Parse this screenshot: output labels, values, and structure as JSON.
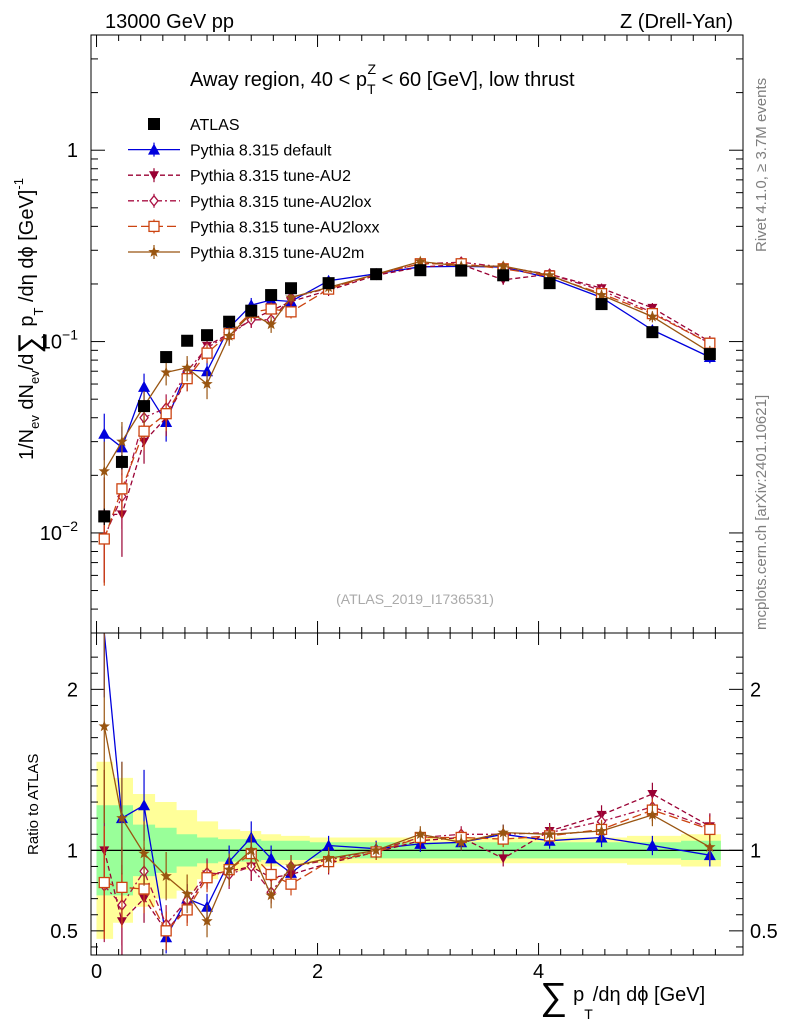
{
  "header": {
    "energy_label": "13000 GeV pp",
    "process_label": "Z (Drell-Yan)"
  },
  "side_labels": {
    "rivet": "Rivet 4.1.0, ≥ 3.7M events",
    "mcplots": "mcplots.cern.ch [arXiv:2401.10621]"
  },
  "colors": {
    "atlas": "#000000",
    "default": "#0000dd",
    "au2": "#990033",
    "au2lox": "#aa1144",
    "au2loxx": "#cc4411",
    "au2m": "#995511",
    "band_inner": "#99ff99",
    "band_outer": "#ffff99"
  },
  "chart_data": {
    "type": "scatter",
    "title": "Away region, 40 < p_T^Z < 60 [GeV], low thrust",
    "title_parts": {
      "prefix": "Away region, 40 < p",
      "sup": "Z",
      "sub": "T",
      "suffix": " < 60 [GeV], low thrust"
    },
    "watermark": "(ATLAS_2019_I1736531)",
    "xlabel": "∑ p_T/dη dϕ [GeV]",
    "xlabel_parts": {
      "sum": "∑",
      "p": "p",
      "sub": "T",
      "rest": "/dη dϕ [GeV]"
    },
    "ylabel": "1/N_ev dN_ev/d∑ p_T /dη dϕ [GeV]^-1",
    "ylabel_parts": {
      "a": "1/N",
      "ev1": "ev",
      "b": " dN",
      "ev2": "ev",
      "c": "/d",
      "sum": "∑",
      "d": " p",
      "sub": "T",
      "e": " /dη dϕ  [GeV]",
      "sup": "-1"
    },
    "ratio_ylabel": "Ratio to ATLAS",
    "xlim": [
      -0.05,
      5.85
    ],
    "ylim": [
      0.003,
      4.0
    ],
    "ratio_ylim": [
      0.35,
      2.35
    ],
    "yscale": "log",
    "x_ticks": [
      "0",
      "2",
      "4"
    ],
    "x_tick_values": [
      0,
      2,
      4
    ],
    "y_ticks": [
      "10^-2",
      "10^-1",
      "1"
    ],
    "y_tick_parts": [
      {
        "base": "10",
        "exp": "−2",
        "value": 0.01
      },
      {
        "base": "10",
        "exp": "−1",
        "value": 0.1
      },
      {
        "base": "1",
        "exp": "",
        "value": 1
      }
    ],
    "ratio_ticks": [
      "0.5",
      "1",
      "2"
    ],
    "ratio_tick_values": [
      0.5,
      1,
      2
    ],
    "x": [
      0.07,
      0.23,
      0.43,
      0.63,
      0.82,
      1.0,
      1.2,
      1.4,
      1.58,
      1.76,
      2.1,
      2.53,
      2.93,
      3.3,
      3.68,
      4.1,
      4.57,
      5.03,
      5.55
    ],
    "band_inner": [
      0.28,
      0.28,
      0.16,
      0.14,
      0.1,
      0.08,
      0.07,
      0.07,
      0.06,
      0.06,
      0.05,
      0.05,
      0.05,
      0.05,
      0.05,
      0.05,
      0.05,
      0.05,
      0.06
    ],
    "band_outer": [
      0.55,
      0.45,
      0.35,
      0.3,
      0.25,
      0.18,
      0.13,
      0.12,
      0.1,
      0.09,
      0.08,
      0.08,
      0.08,
      0.08,
      0.08,
      0.08,
      0.08,
      0.09,
      0.1
    ],
    "series": [
      {
        "name": "ATLAS",
        "key": "atlas",
        "marker": "square",
        "line": "none",
        "values": [
          0.0122,
          0.0235,
          0.046,
          0.083,
          0.101,
          0.108,
          0.127,
          0.145,
          0.175,
          0.19,
          0.202,
          0.225,
          0.236,
          0.235,
          0.222,
          0.202,
          0.157,
          0.112,
          0.086
        ],
        "errors": [
          0.0012,
          0.002,
          0.003,
          0.004,
          0.004,
          0.004,
          0.004,
          0.004,
          0.005,
          0.005,
          0.005,
          0.005,
          0.005,
          0.005,
          0.005,
          0.005,
          0.004,
          0.003,
          0.003
        ]
      },
      {
        "name": "Pythia 8.315 default",
        "key": "default",
        "marker": "triangle-up",
        "line": "solid",
        "values": [
          0.033,
          0.028,
          0.058,
          0.038,
          0.071,
          0.07,
          0.118,
          0.155,
          0.165,
          0.162,
          0.208,
          0.226,
          0.246,
          0.247,
          0.245,
          0.215,
          0.17,
          0.115,
          0.083
        ],
        "errors": [
          0.009,
          0.008,
          0.01,
          0.008,
          0.009,
          0.009,
          0.012,
          0.014,
          0.014,
          0.013,
          0.012,
          0.012,
          0.013,
          0.013,
          0.013,
          0.011,
          0.01,
          0.007,
          0.006
        ],
        "ratio": [
          2.7,
          1.2,
          1.28,
          0.46,
          0.7,
          0.65,
          0.93,
          1.08,
          0.95,
          0.86,
          1.03,
          1.01,
          1.04,
          1.05,
          1.1,
          1.06,
          1.08,
          1.03,
          0.97
        ],
        "ratio_err": [
          0.75,
          0.35,
          0.22,
          0.1,
          0.09,
          0.08,
          0.1,
          0.1,
          0.08,
          0.07,
          0.06,
          0.05,
          0.05,
          0.05,
          0.06,
          0.05,
          0.06,
          0.06,
          0.07
        ]
      },
      {
        "name": "Pythia 8.315 tune-AU2",
        "key": "au2",
        "marker": "triangle-down",
        "line": "dashed",
        "values": [
          0.0125,
          0.0125,
          0.03,
          0.04,
          0.064,
          0.095,
          0.11,
          0.13,
          0.145,
          0.162,
          0.185,
          0.222,
          0.245,
          0.253,
          0.21,
          0.225,
          0.19,
          0.15,
          0.1
        ],
        "errors": [
          0.007,
          0.005,
          0.007,
          0.008,
          0.009,
          0.01,
          0.011,
          0.012,
          0.012,
          0.012,
          0.012,
          0.012,
          0.013,
          0.013,
          0.012,
          0.012,
          0.011,
          0.009,
          0.007
        ],
        "ratio": [
          1.0,
          0.56,
          0.7,
          0.5,
          0.65,
          0.85,
          0.87,
          0.9,
          0.83,
          0.85,
          0.92,
          0.99,
          1.06,
          1.08,
          0.95,
          1.12,
          1.22,
          1.35,
          1.15
        ],
        "ratio_err": [
          0.5,
          0.3,
          0.15,
          0.12,
          0.1,
          0.09,
          0.09,
          0.09,
          0.07,
          0.07,
          0.07,
          0.05,
          0.05,
          0.05,
          0.05,
          0.05,
          0.06,
          0.07,
          0.08
        ]
      },
      {
        "name": "Pythia 8.315 tune-AU2lox",
        "key": "au2lox",
        "marker": "diamond",
        "line": "dashdot",
        "values": [
          0.0095,
          0.0155,
          0.04,
          0.045,
          0.07,
          0.093,
          0.108,
          0.13,
          0.13,
          0.17,
          0.19,
          0.225,
          0.255,
          0.26,
          0.245,
          0.225,
          0.185,
          0.142,
          0.098
        ],
        "errors": [
          0.004,
          0.005,
          0.007,
          0.008,
          0.009,
          0.01,
          0.011,
          0.012,
          0.011,
          0.012,
          0.012,
          0.012,
          0.013,
          0.013,
          0.013,
          0.012,
          0.011,
          0.009,
          0.007
        ],
        "ratio": [
          0.78,
          0.66,
          0.87,
          0.54,
          0.69,
          0.86,
          0.85,
          0.9,
          0.74,
          0.9,
          0.94,
          1.0,
          1.08,
          1.1,
          1.1,
          1.11,
          1.18,
          1.27,
          1.14
        ],
        "ratio_err": [
          0.35,
          0.25,
          0.15,
          0.12,
          0.1,
          0.09,
          0.09,
          0.09,
          0.07,
          0.07,
          0.07,
          0.05,
          0.05,
          0.05,
          0.05,
          0.05,
          0.06,
          0.07,
          0.08
        ]
      },
      {
        "name": "Pythia 8.315 tune-AU2loxx",
        "key": "au2loxx",
        "marker": "open-square",
        "line": "longdash",
        "values": [
          0.0093,
          0.017,
          0.034,
          0.042,
          0.064,
          0.087,
          0.11,
          0.142,
          0.148,
          0.143,
          0.188,
          0.225,
          0.255,
          0.255,
          0.24,
          0.22,
          0.178,
          0.14,
          0.098
        ],
        "errors": [
          0.004,
          0.005,
          0.007,
          0.008,
          0.009,
          0.01,
          0.011,
          0.012,
          0.012,
          0.011,
          0.012,
          0.012,
          0.013,
          0.013,
          0.013,
          0.012,
          0.011,
          0.009,
          0.007
        ],
        "ratio": [
          0.8,
          0.77,
          0.76,
          0.5,
          0.63,
          0.83,
          0.88,
          0.98,
          0.85,
          0.79,
          0.93,
          0.99,
          1.08,
          1.08,
          1.07,
          1.09,
          1.13,
          1.25,
          1.13
        ],
        "ratio_err": [
          0.35,
          0.25,
          0.15,
          0.12,
          0.1,
          0.09,
          0.09,
          0.09,
          0.07,
          0.07,
          0.07,
          0.05,
          0.05,
          0.05,
          0.05,
          0.05,
          0.06,
          0.07,
          0.08
        ]
      },
      {
        "name": "Pythia 8.315 tune-AU2m",
        "key": "au2m",
        "marker": "star",
        "line": "solid",
        "values": [
          0.021,
          0.03,
          0.046,
          0.069,
          0.073,
          0.06,
          0.107,
          0.14,
          0.123,
          0.17,
          0.192,
          0.225,
          0.262,
          0.248,
          0.248,
          0.222,
          0.175,
          0.135,
          0.088
        ],
        "errors": [
          0.009,
          0.008,
          0.009,
          0.01,
          0.011,
          0.01,
          0.012,
          0.013,
          0.012,
          0.012,
          0.012,
          0.012,
          0.013,
          0.013,
          0.013,
          0.012,
          0.011,
          0.009,
          0.007
        ],
        "ratio": [
          1.77,
          1.2,
          0.98,
          0.84,
          0.73,
          0.56,
          0.88,
          1.0,
          0.72,
          0.9,
          0.95,
          1.0,
          1.1,
          1.05,
          1.11,
          1.1,
          1.12,
          1.22,
          1.02
        ],
        "ratio_err": [
          0.6,
          0.35,
          0.2,
          0.15,
          0.12,
          0.1,
          0.1,
          0.1,
          0.08,
          0.07,
          0.07,
          0.05,
          0.05,
          0.05,
          0.05,
          0.05,
          0.06,
          0.07,
          0.08
        ]
      }
    ]
  }
}
